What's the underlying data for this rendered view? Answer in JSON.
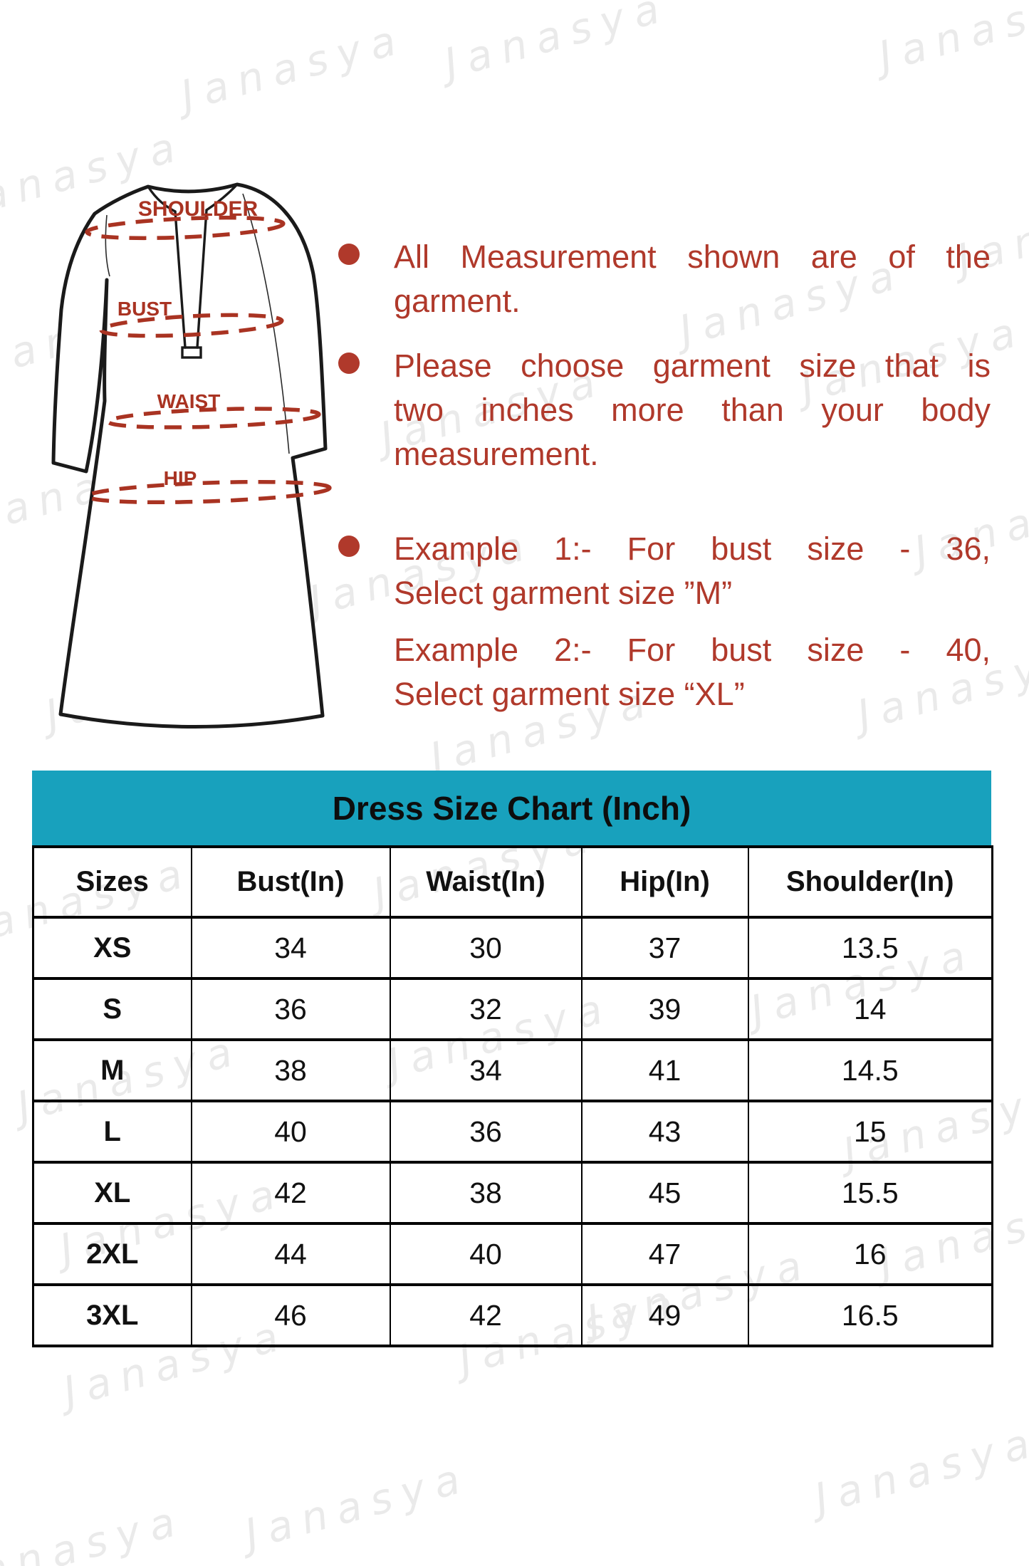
{
  "watermark": {
    "text": "Janasya"
  },
  "figure": {
    "labels": {
      "shoulder": "SHOULDER",
      "bust": "BUST",
      "waist": "WAIST",
      "hip": "HIP"
    }
  },
  "notes": {
    "items": [
      {
        "lines": [
          "All Measurement shown are of the",
          "garment."
        ]
      },
      {
        "lines": [
          "Please choose garment size that is",
          "two inches more than your body",
          "measurement."
        ]
      },
      {
        "examples": [
          {
            "lines": [
              "Example 1:- For bust size - 36,",
              "Select garment size ”M”"
            ]
          },
          {
            "lines": [
              "Example 2:- For bust size - 40,",
              "Select garment size “XL”"
            ]
          }
        ]
      }
    ]
  },
  "chart_data": {
    "type": "table",
    "title": "Dress Size Chart (Inch)",
    "columns": [
      "Sizes",
      "Bust(In)",
      "Waist(In)",
      "Hip(In)",
      "Shoulder(In)"
    ],
    "rows": [
      [
        "XS",
        34,
        30,
        37,
        13.5
      ],
      [
        "S",
        36,
        32,
        39,
        14
      ],
      [
        "M",
        38,
        34,
        41,
        14.5
      ],
      [
        "L",
        40,
        36,
        43,
        15
      ],
      [
        "XL",
        42,
        38,
        45,
        15.5
      ],
      [
        "2XL",
        44,
        40,
        47,
        16
      ],
      [
        "3XL",
        46,
        42,
        49,
        16.5
      ]
    ]
  },
  "colors": {
    "accent_red": "#b0392b",
    "dash_red": "#a93322",
    "header_teal": "#18a1bd",
    "watermark_gray": "#eaeaea"
  }
}
